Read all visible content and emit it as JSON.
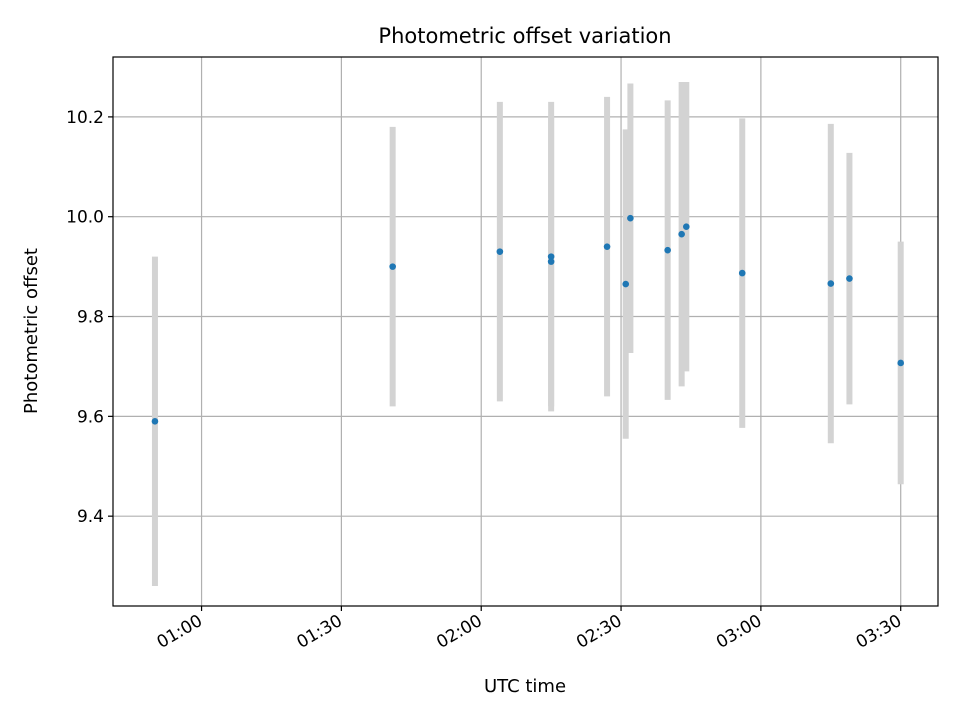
{
  "chart_data": {
    "type": "scatter",
    "title": "Photometric offset variation",
    "xlabel": "UTC time",
    "ylabel": "Photometric offset",
    "x_ticks": [
      "01:00",
      "01:30",
      "02:00",
      "02:30",
      "03:00",
      "03:30"
    ],
    "y_ticks": [
      "9.4",
      "9.6",
      "9.8",
      "10.0",
      "10.2"
    ],
    "xlim": [
      "00:41",
      "03:38"
    ],
    "ylim": [
      9.22,
      10.32
    ],
    "grid": true,
    "colors": {
      "points": "#1f77b4",
      "errorbars": "#d3d3d3",
      "grid": "#b0b0b0"
    },
    "series": [
      {
        "points": [
          {
            "t": "00:50",
            "y": 9.59,
            "err": 0.33
          },
          {
            "t": "01:41",
            "y": 9.9,
            "err": 0.28
          },
          {
            "t": "02:04",
            "y": 9.93,
            "err": 0.3
          },
          {
            "t": "02:15",
            "y": 9.92,
            "err": 0.31
          },
          {
            "t": "02:15",
            "y": 9.91,
            "err": 0.29
          },
          {
            "t": "02:27",
            "y": 9.94,
            "err": 0.3
          },
          {
            "t": "02:31",
            "y": 9.865,
            "err": 0.31
          },
          {
            "t": "02:32",
            "y": 9.997,
            "err": 0.27
          },
          {
            "t": "02:40",
            "y": 9.933,
            "err": 0.3
          },
          {
            "t": "02:43",
            "y": 9.965,
            "err": 0.305
          },
          {
            "t": "02:44",
            "y": 9.98,
            "err": 0.29
          },
          {
            "t": "02:56",
            "y": 9.887,
            "err": 0.31
          },
          {
            "t": "03:15",
            "y": 9.866,
            "err": 0.32
          },
          {
            "t": "03:19",
            "y": 9.876,
            "err": 0.252
          },
          {
            "t": "03:30",
            "y": 9.707,
            "err": 0.243
          }
        ]
      }
    ]
  }
}
